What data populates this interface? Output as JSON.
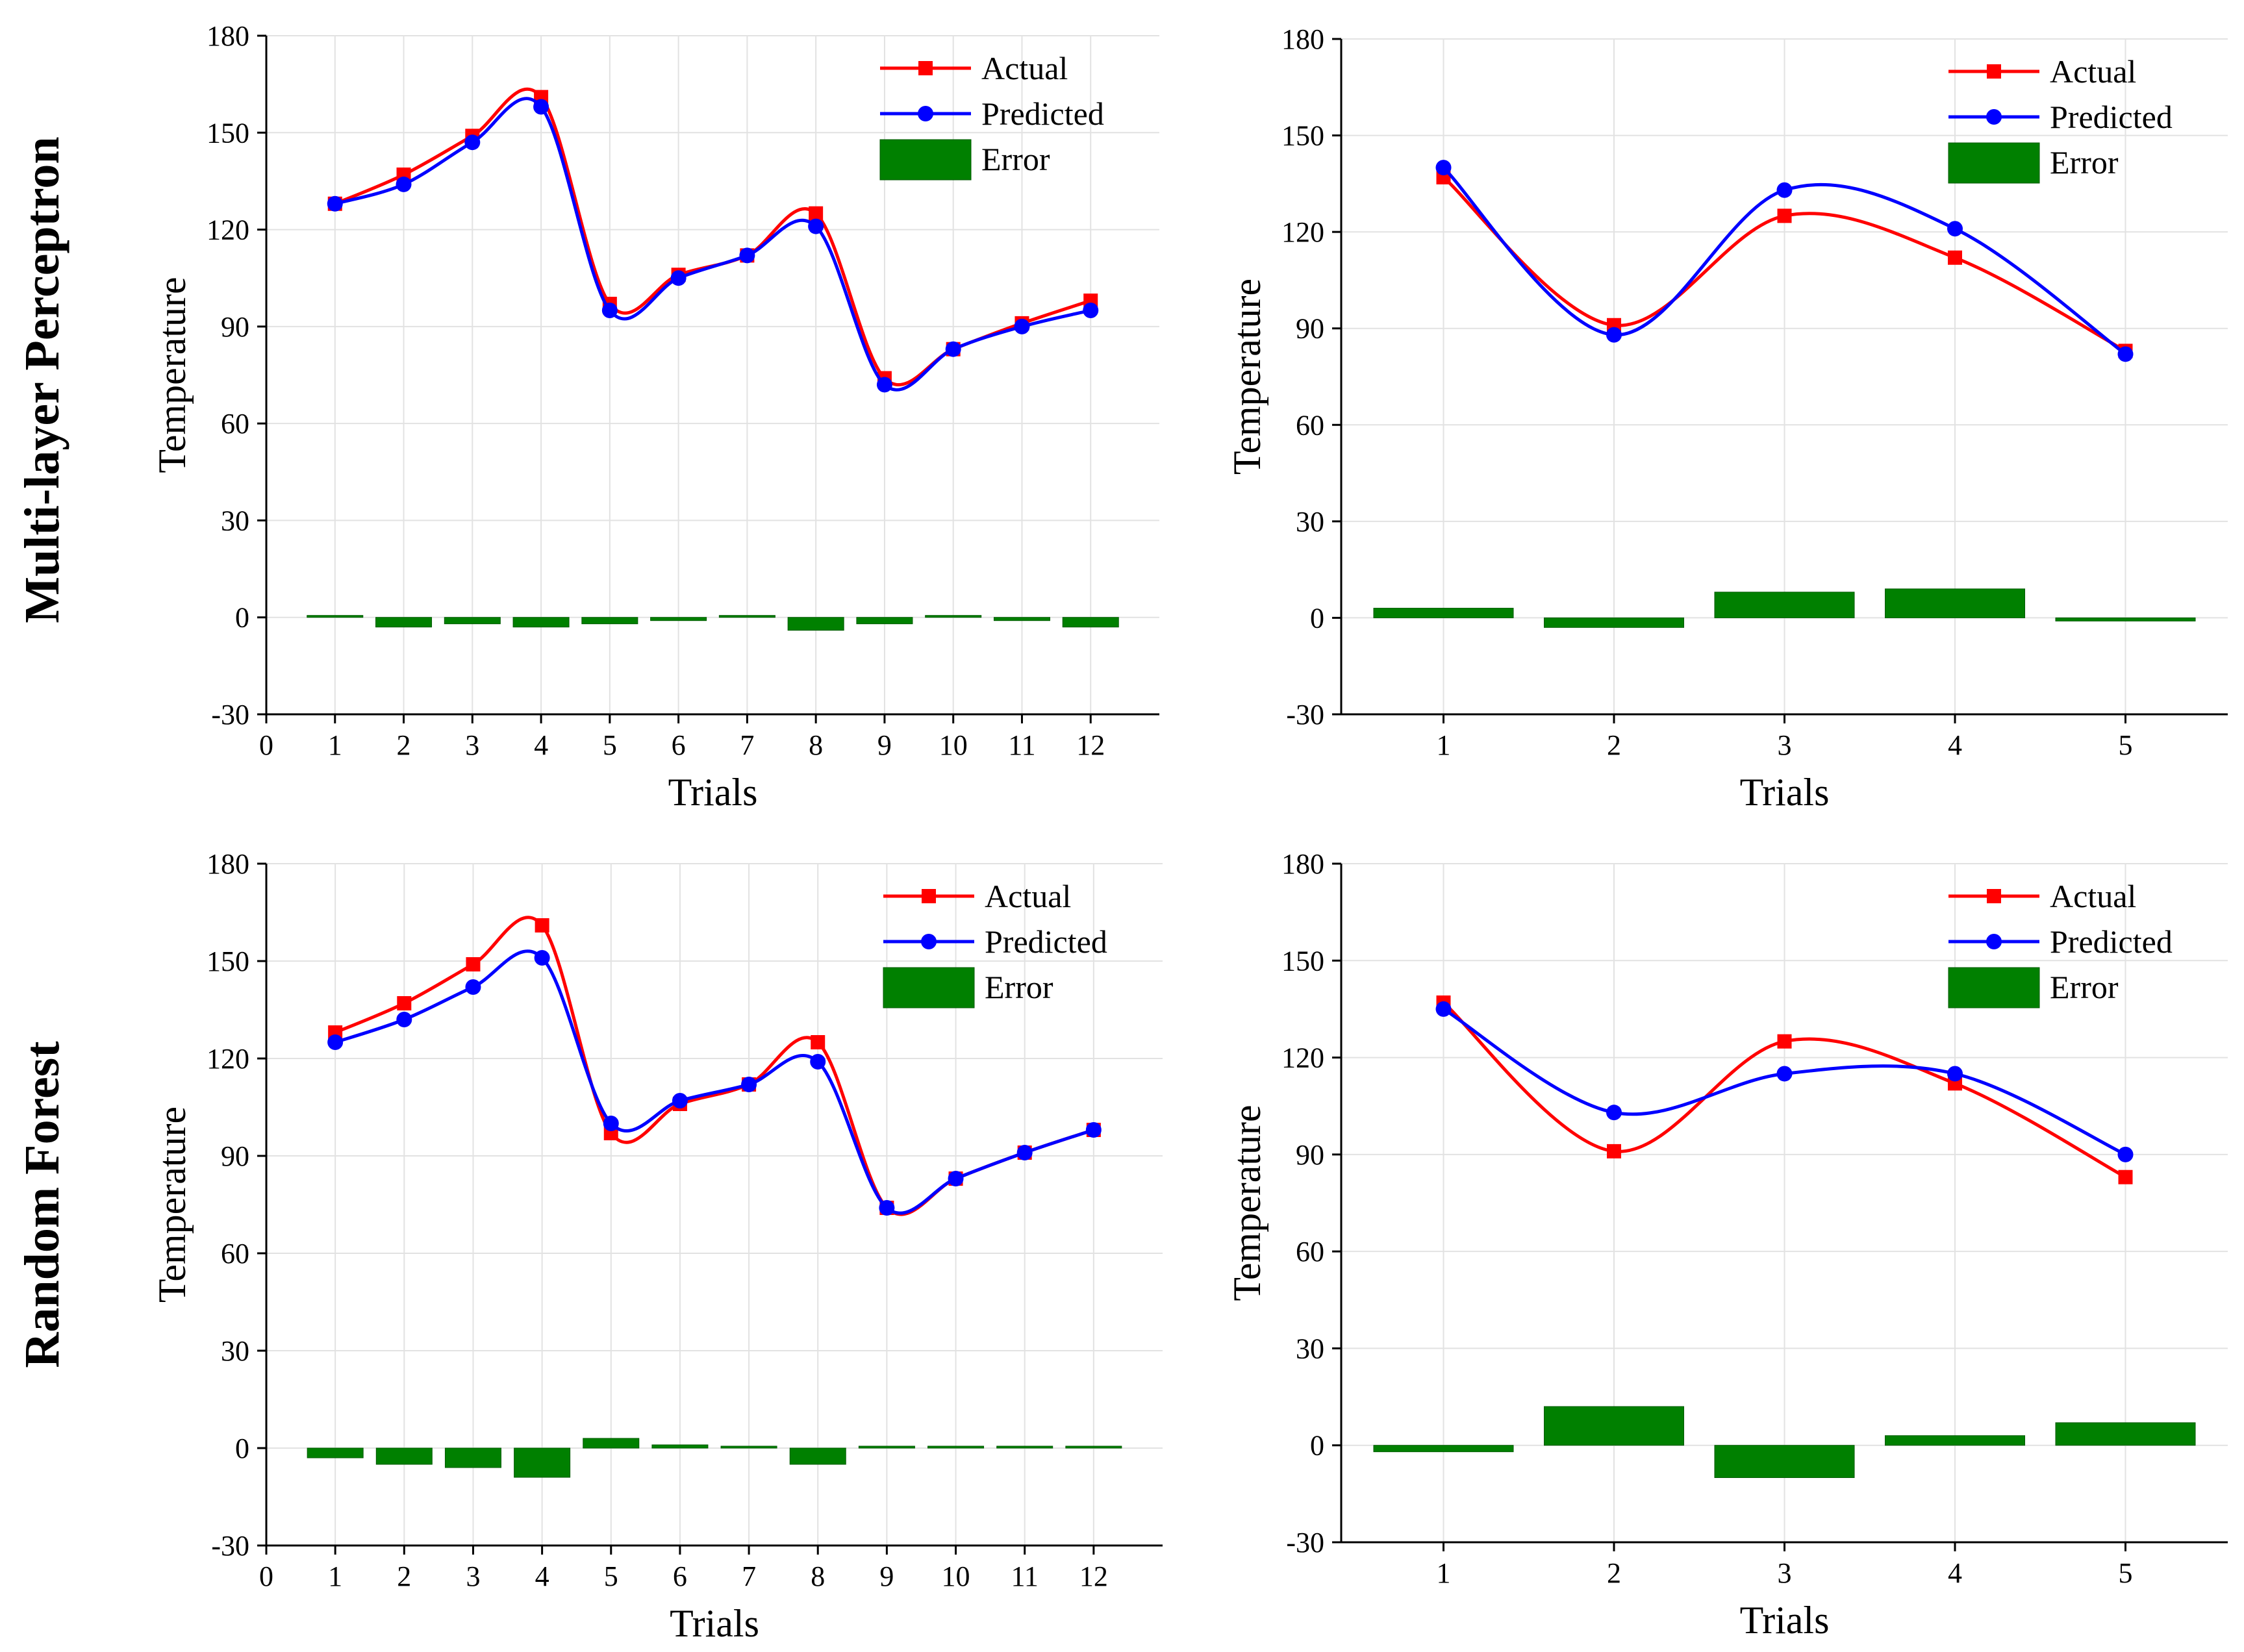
{
  "figure": {
    "row_labels": [
      "Multi-layer Perceptron",
      "Random Forest"
    ]
  },
  "colors": {
    "actual": "#ff0000",
    "predicted": "#0000ff",
    "error": "#008000",
    "grid": "#e2e2e2"
  },
  "chart_data": [
    {
      "type": "line",
      "row": "Multi-layer Perceptron",
      "xlabel": "Trials",
      "ylabel": "Temperature",
      "xlim": [
        0,
        13
      ],
      "ylim": [
        -30,
        180
      ],
      "xticks": [
        0,
        1,
        2,
        3,
        4,
        5,
        6,
        7,
        8,
        9,
        10,
        11,
        12
      ],
      "yticks": [
        -30,
        0,
        30,
        60,
        90,
        120,
        150,
        180
      ],
      "x": [
        1,
        2,
        3,
        4,
        5,
        6,
        7,
        8,
        9,
        10,
        11,
        12
      ],
      "grid": true,
      "legend": "top-right",
      "series": [
        {
          "name": "Actual",
          "kind": "line",
          "marker": "square",
          "values": [
            128,
            137,
            149,
            161,
            97,
            106,
            112,
            125,
            74,
            83,
            91,
            98
          ]
        },
        {
          "name": "Predicted",
          "kind": "line",
          "marker": "circle",
          "values": [
            128,
            134,
            147,
            158,
            95,
            105,
            112,
            121,
            72,
            83,
            90,
            95
          ]
        },
        {
          "name": "Error",
          "kind": "bar",
          "values": [
            0,
            -3,
            -2,
            -3,
            -2,
            -1,
            0,
            -4,
            -2,
            0,
            -1,
            -3
          ]
        }
      ]
    },
    {
      "type": "line",
      "row": "Multi-layer Perceptron",
      "xlabel": "Trials",
      "ylabel": "Temperature",
      "xlim": [
        0.4,
        5.6
      ],
      "ylim": [
        -30,
        180
      ],
      "xticks": [
        1,
        2,
        3,
        4,
        5
      ],
      "yticks": [
        -30,
        0,
        30,
        60,
        90,
        120,
        150,
        180
      ],
      "x": [
        1,
        2,
        3,
        4,
        5
      ],
      "grid": true,
      "legend": "top-right",
      "series": [
        {
          "name": "Actual",
          "kind": "line",
          "marker": "square",
          "values": [
            137,
            91,
            125,
            112,
            83
          ]
        },
        {
          "name": "Predicted",
          "kind": "line",
          "marker": "circle",
          "values": [
            140,
            88,
            133,
            121,
            82
          ]
        },
        {
          "name": "Error",
          "kind": "bar",
          "values": [
            3,
            -3,
            8,
            9,
            -1
          ]
        }
      ]
    },
    {
      "type": "line",
      "row": "Random Forest",
      "xlabel": "Trials",
      "ylabel": "Temperature",
      "xlim": [
        0,
        13
      ],
      "ylim": [
        -30,
        180
      ],
      "xticks": [
        0,
        1,
        2,
        3,
        4,
        5,
        6,
        7,
        8,
        9,
        10,
        11,
        12
      ],
      "yticks": [
        -30,
        0,
        30,
        60,
        90,
        120,
        150,
        180
      ],
      "x": [
        1,
        2,
        3,
        4,
        5,
        6,
        7,
        8,
        9,
        10,
        11,
        12
      ],
      "grid": true,
      "legend": "top-right",
      "series": [
        {
          "name": "Actual",
          "kind": "line",
          "marker": "square",
          "values": [
            128,
            137,
            149,
            161,
            97,
            106,
            112,
            125,
            74,
            83,
            91,
            98
          ]
        },
        {
          "name": "Predicted",
          "kind": "line",
          "marker": "circle",
          "values": [
            125,
            132,
            142,
            151,
            100,
            107,
            112,
            119,
            74,
            83,
            91,
            98
          ]
        },
        {
          "name": "Error",
          "kind": "bar",
          "values": [
            -3,
            -5,
            -6,
            -9,
            3,
            1,
            0,
            -5,
            0,
            0,
            0,
            0
          ]
        }
      ]
    },
    {
      "type": "line",
      "row": "Random Forest",
      "xlabel": "Trials",
      "ylabel": "Temperature",
      "xlim": [
        0.4,
        5.6
      ],
      "ylim": [
        -30,
        180
      ],
      "xticks": [
        1,
        2,
        3,
        4,
        5
      ],
      "yticks": [
        -30,
        0,
        30,
        60,
        90,
        120,
        150,
        180
      ],
      "x": [
        1,
        2,
        3,
        4,
        5
      ],
      "grid": true,
      "legend": "top-right",
      "series": [
        {
          "name": "Actual",
          "kind": "line",
          "marker": "square",
          "values": [
            137,
            91,
            125,
            112,
            83
          ]
        },
        {
          "name": "Predicted",
          "kind": "line",
          "marker": "circle",
          "values": [
            135,
            103,
            115,
            115,
            90
          ]
        },
        {
          "name": "Error",
          "kind": "bar",
          "values": [
            -2,
            12,
            -10,
            3,
            7
          ]
        }
      ]
    }
  ]
}
